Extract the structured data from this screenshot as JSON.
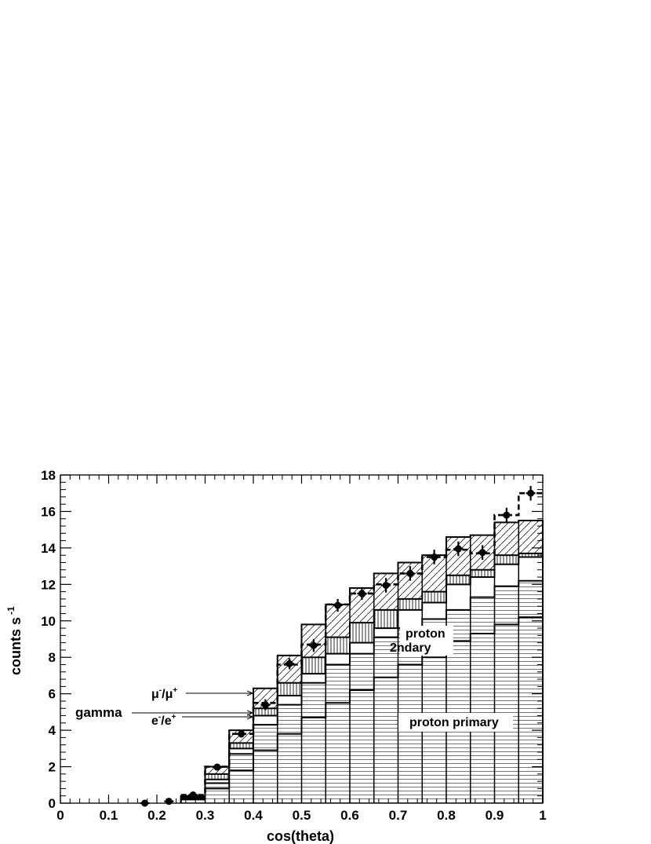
{
  "chart_data": {
    "type": "bar",
    "title": "",
    "xlabel": "cos(theta)",
    "ylabel_main": "counts s",
    "ylabel_sup": "-1",
    "xlim": [
      0,
      1
    ],
    "ylim": [
      0,
      18
    ],
    "x_ticks": [
      "0",
      "0.1",
      "0.2",
      "0.3",
      "0.4",
      "0.5",
      "0.6",
      "0.7",
      "0.8",
      "0.9",
      "1"
    ],
    "y_ticks": [
      "0",
      "2",
      "4",
      "6",
      "8",
      "10",
      "12",
      "14",
      "16",
      "18"
    ],
    "bin_edges": [
      0.25,
      0.3,
      0.35,
      0.4,
      0.45,
      0.5,
      0.55,
      0.6,
      0.65,
      0.7,
      0.75,
      0.8,
      0.85,
      0.9,
      0.95,
      1.0
    ],
    "layers": [
      {
        "name": "proton primary",
        "fill": "horizontal-lines",
        "values": [
          0.2,
          0.8,
          1.8,
          2.9,
          3.8,
          4.7,
          5.5,
          6.2,
          6.9,
          7.6,
          8.0,
          8.9,
          9.3,
          9.8,
          10.2
        ]
      },
      {
        "name": "proton 2ndary",
        "fill": "horizontal-lines",
        "values": [
          0.25,
          1.1,
          2.7,
          4.3,
          5.4,
          6.6,
          7.6,
          8.2,
          9.1,
          9.6,
          10.1,
          10.6,
          11.3,
          11.9,
          12.2
        ]
      },
      {
        "name": "e-/e+",
        "fill": "none",
        "values": [
          0.3,
          1.3,
          3.0,
          4.8,
          5.9,
          7.1,
          8.2,
          8.8,
          9.6,
          10.6,
          11.0,
          12.0,
          12.4,
          13.1,
          13.5
        ]
      },
      {
        "name": "mu-/mu+",
        "fill": "vertical-lines",
        "values": [
          0.35,
          1.6,
          3.3,
          5.2,
          6.6,
          8.0,
          9.1,
          9.9,
          10.6,
          11.2,
          11.6,
          12.5,
          12.8,
          13.6,
          13.7
        ]
      },
      {
        "name": "gamma",
        "fill": "diagonal-lines",
        "values": [
          0.4,
          2.0,
          4.0,
          6.3,
          8.1,
          9.8,
          10.9,
          11.8,
          12.6,
          13.2,
          13.6,
          14.6,
          14.7,
          15.4,
          15.5
        ]
      }
    ],
    "model_total_dashed": [
      0.45,
      2.0,
      3.8,
      5.5,
      7.6,
      8.7,
      10.9,
      11.5,
      12.0,
      12.6,
      13.5,
      13.9,
      13.7,
      15.8,
      17.0
    ],
    "data_points": {
      "x": [
        0.175,
        0.225,
        0.275,
        0.325,
        0.375,
        0.425,
        0.475,
        0.525,
        0.575,
        0.625,
        0.675,
        0.725,
        0.775,
        0.825,
        0.875,
        0.925,
        0.975
      ],
      "y": [
        0.0,
        0.1,
        0.45,
        1.98,
        3.8,
        5.4,
        7.65,
        8.65,
        10.85,
        11.5,
        11.95,
        12.6,
        13.5,
        13.95,
        13.75,
        15.8,
        17.0
      ],
      "yerr": [
        0.05,
        0.05,
        0.1,
        0.15,
        0.2,
        0.3,
        0.3,
        0.35,
        0.35,
        0.35,
        0.4,
        0.4,
        0.4,
        0.4,
        0.4,
        0.4,
        0.4
      ]
    },
    "annotations": {
      "mu": {
        "base": "μ",
        "sup1": "-",
        "slash": "/μ",
        "sup2": "+"
      },
      "ee": {
        "base": "e",
        "sup1": "-",
        "slash": "/e",
        "sup2": "+"
      },
      "gamma": "gamma",
      "proton": "proton",
      "ndary": "2ndary",
      "proton_primary": "proton primary"
    }
  }
}
